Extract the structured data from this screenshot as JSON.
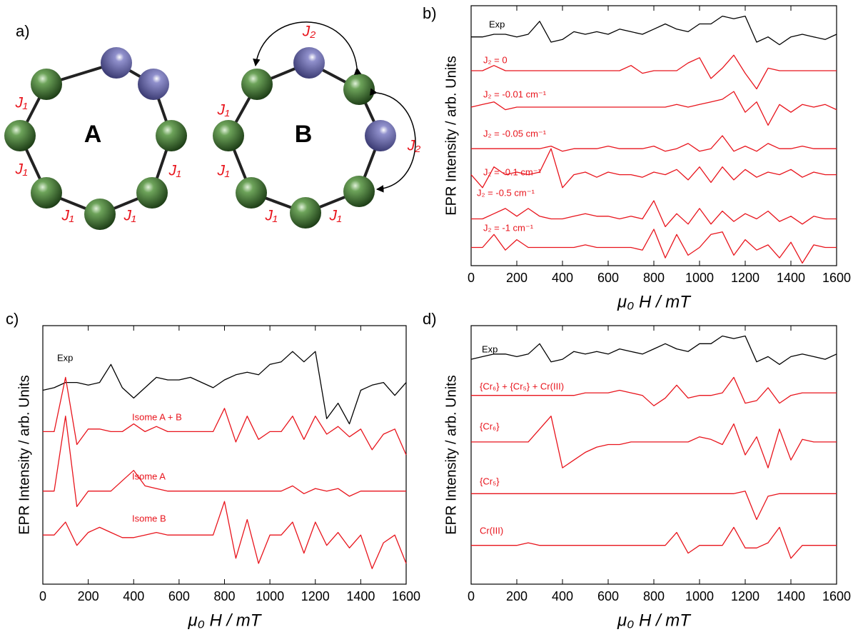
{
  "panels": [
    "a)",
    "b)",
    "c)",
    "d)"
  ],
  "diagram": {
    "ring_a": "A",
    "ring_b": "B",
    "j1_labels": [
      "J₁",
      "J₁",
      "J₁",
      "J₁",
      "J₁",
      "J₁",
      "J₁",
      "J₁",
      "J₁"
    ],
    "j2_labels": [
      "J₂",
      "J₂"
    ]
  },
  "chart_data": [
    {
      "type": "line",
      "x_label": "μ₀ H / mT",
      "y_label": "EPR Intensity / arb. Units",
      "x": [
        0,
        50,
        100,
        150,
        200,
        250,
        300,
        350,
        400,
        450,
        500,
        550,
        600,
        650,
        700,
        750,
        800,
        850,
        900,
        950,
        1000,
        1050,
        1100,
        1150,
        1200,
        1250,
        1300,
        1350,
        1400,
        1450,
        1500,
        1550,
        1600
      ],
      "xlim": [
        0,
        1600
      ],
      "xticks": [
        0,
        200,
        400,
        600,
        800,
        1000,
        1200,
        1400,
        1600
      ],
      "ylim": [
        0,
        100
      ],
      "series": [
        {
          "name": "Exp",
          "color": "#000000",
          "values": [
            88,
            88,
            89,
            89,
            88,
            89,
            94,
            86,
            87,
            90,
            89,
            90,
            89,
            91,
            90,
            89,
            91,
            93,
            91,
            90,
            93,
            93,
            96,
            95,
            96,
            86,
            88,
            85,
            88,
            89,
            88,
            87,
            89
          ]
        },
        {
          "name": "J₂ = 0",
          "color": "#e8141c",
          "values": [
            75,
            75,
            77,
            75,
            75,
            75,
            75,
            75,
            75,
            75,
            75,
            75,
            75,
            75,
            77,
            74,
            75,
            75,
            75,
            78,
            80,
            72,
            76,
            81,
            74,
            68,
            76,
            75,
            75,
            75,
            75,
            75,
            75
          ]
        },
        {
          "name": "J₂ = -0.01 cm⁻¹",
          "color": "#e8141c",
          "values": [
            61,
            62,
            63,
            60,
            61,
            61,
            61,
            61,
            61,
            61,
            61,
            61,
            61,
            61,
            61,
            61,
            61,
            61,
            62,
            61,
            62,
            63,
            64,
            67,
            59,
            63,
            54,
            62,
            59,
            62,
            61,
            62,
            60
          ]
        },
        {
          "name": "J₂ = -0.05 cm⁻¹",
          "color": "#e8141c",
          "values": [
            45,
            45,
            45,
            45,
            45,
            45,
            45,
            46,
            44,
            45,
            45,
            45,
            46,
            45,
            45,
            45,
            46,
            44,
            45,
            47,
            44,
            45,
            50,
            44,
            46,
            44,
            47,
            45,
            45,
            46,
            45,
            45,
            45
          ]
        },
        {
          "name": "J₂ = -0.1 cm⁻¹",
          "color": "#e8141c",
          "values": [
            35,
            30,
            38,
            35,
            36,
            35,
            36,
            45,
            30,
            35,
            36,
            34,
            36,
            35,
            35,
            34,
            36,
            35,
            37,
            33,
            38,
            32,
            38,
            33,
            37,
            34,
            36,
            35,
            37,
            34,
            36,
            35,
            35
          ]
        },
        {
          "name": "J₂ = -0.5 cm⁻¹",
          "color": "#e8141c",
          "values": [
            18,
            18,
            20,
            22,
            19,
            22,
            19,
            18,
            18,
            19,
            20,
            19,
            19,
            18,
            19,
            18,
            25,
            15,
            20,
            16,
            22,
            16,
            21,
            17,
            20,
            18,
            21,
            17,
            19,
            16,
            19,
            18,
            18
          ]
        },
        {
          "name": "J₂ = -1 cm⁻¹",
          "color": "#e8141c",
          "values": [
            7,
            7,
            12,
            6,
            10,
            7,
            7,
            7,
            7,
            7,
            8,
            7,
            7,
            7,
            7,
            6,
            14,
            3,
            12,
            4,
            7,
            12,
            13,
            4,
            10,
            6,
            8,
            3,
            9,
            1,
            8,
            7,
            7
          ]
        }
      ]
    },
    {
      "type": "line",
      "x_label": "μ₀ H / mT",
      "y_label": "EPR Intensity / arb. Units",
      "x": [
        0,
        50,
        100,
        150,
        200,
        250,
        300,
        350,
        400,
        450,
        500,
        550,
        600,
        650,
        700,
        750,
        800,
        850,
        900,
        950,
        1000,
        1050,
        1100,
        1150,
        1200,
        1250,
        1300,
        1350,
        1400,
        1450,
        1500,
        1550,
        1600
      ],
      "xlim": [
        0,
        1600
      ],
      "xticks": [
        0,
        200,
        400,
        600,
        800,
        1000,
        1200,
        1400,
        1600
      ],
      "ylim": [
        0,
        100
      ],
      "series": [
        {
          "name": "Exp",
          "color": "#000000",
          "values": [
            75,
            76,
            78,
            78,
            77,
            78,
            85,
            76,
            72,
            76,
            80,
            79,
            79,
            80,
            78,
            76,
            79,
            81,
            82,
            81,
            85,
            86,
            90,
            86,
            90,
            64,
            70,
            62,
            75,
            77,
            78,
            73,
            78
          ]
        },
        {
          "name": "Isome A + B",
          "color": "#e8141c",
          "values": [
            59,
            59,
            80,
            54,
            60,
            60,
            59,
            59,
            62,
            59,
            61,
            59,
            59,
            59,
            59,
            59,
            68,
            55,
            65,
            56,
            59,
            59,
            65,
            56,
            65,
            58,
            61,
            57,
            60,
            52,
            58,
            60,
            50
          ]
        },
        {
          "name": "Isome A",
          "color": "#e8141c",
          "values": [
            36,
            36,
            65,
            30,
            36,
            36,
            36,
            40,
            44,
            38,
            37,
            36,
            36,
            36,
            36,
            36,
            36,
            36,
            36,
            36,
            36,
            36,
            38,
            35,
            37,
            36,
            37,
            34,
            36,
            36,
            36,
            36,
            36
          ]
        },
        {
          "name": "Isome B",
          "color": "#e8141c",
          "values": [
            19,
            19,
            24,
            15,
            20,
            22,
            20,
            18,
            18,
            19,
            20,
            19,
            19,
            19,
            19,
            19,
            32,
            10,
            25,
            8,
            19,
            19,
            24,
            12,
            24,
            15,
            20,
            14,
            19,
            6,
            16,
            19,
            8
          ]
        }
      ]
    },
    {
      "type": "line",
      "x_label": "μ₀ H / mT",
      "y_label": "EPR Intensity / arb. Units",
      "x": [
        0,
        50,
        100,
        150,
        200,
        250,
        300,
        350,
        400,
        450,
        500,
        550,
        600,
        650,
        700,
        750,
        800,
        850,
        900,
        950,
        1000,
        1050,
        1100,
        1150,
        1200,
        1250,
        1300,
        1350,
        1400,
        1450,
        1500,
        1550,
        1600
      ],
      "xlim": [
        0,
        1600
      ],
      "xticks": [
        0,
        200,
        400,
        600,
        800,
        1000,
        1200,
        1400,
        1600
      ],
      "ylim": [
        0,
        100
      ],
      "series": [
        {
          "name": "Exp",
          "color": "#000000",
          "values": [
            87,
            88,
            89,
            89,
            88,
            89,
            93,
            86,
            87,
            90,
            89,
            90,
            89,
            91,
            90,
            89,
            91,
            93,
            91,
            90,
            93,
            93,
            96,
            95,
            96,
            86,
            88,
            85,
            88,
            89,
            88,
            87,
            89
          ]
        },
        {
          "name": "{Cr₆} + {Cr₅} + Cr(III)",
          "color": "#e8141c",
          "values": [
            73,
            73,
            73,
            73,
            73,
            73,
            73,
            73,
            73,
            73,
            74,
            74,
            74,
            75,
            74,
            73,
            69,
            72,
            77,
            72,
            73,
            73,
            74,
            80,
            70,
            71,
            76,
            70,
            73,
            74,
            74,
            74,
            74
          ]
        },
        {
          "name": "{Cr₆}",
          "color": "#e8141c",
          "values": [
            55,
            55,
            55,
            55,
            55,
            55,
            60,
            65,
            45,
            48,
            51,
            53,
            54,
            54,
            55,
            55,
            55,
            55,
            55,
            55,
            57,
            56,
            54,
            62,
            50,
            57,
            45,
            60,
            48,
            56,
            55,
            55,
            55
          ]
        },
        {
          "name": "{Cr₅}",
          "color": "#e8141c",
          "values": [
            35,
            35,
            35,
            35,
            35,
            35,
            35,
            35,
            35,
            35,
            35,
            35,
            35,
            35,
            35,
            35,
            35,
            35,
            35,
            35,
            35,
            35,
            35,
            35,
            36,
            25,
            34,
            35,
            35,
            35,
            35,
            35,
            35
          ]
        },
        {
          "name": "Cr(III)",
          "color": "#e8141c",
          "values": [
            15,
            15,
            15,
            15,
            15,
            16,
            15,
            15,
            15,
            15,
            15,
            15,
            15,
            15,
            15,
            15,
            15,
            15,
            20,
            12,
            15,
            15,
            15,
            22,
            14,
            14,
            16,
            22,
            10,
            15,
            15,
            15,
            15
          ]
        }
      ]
    }
  ]
}
